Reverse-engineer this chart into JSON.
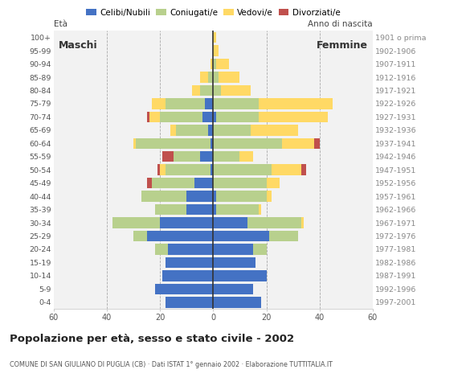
{
  "age_groups": [
    "0-4",
    "5-9",
    "10-14",
    "15-19",
    "20-24",
    "25-29",
    "30-34",
    "35-39",
    "40-44",
    "45-49",
    "50-54",
    "55-59",
    "60-64",
    "65-69",
    "70-74",
    "75-79",
    "80-84",
    "85-89",
    "90-94",
    "95-99",
    "100+"
  ],
  "birth_years": [
    "1997-2001",
    "1992-1996",
    "1987-1991",
    "1982-1986",
    "1977-1981",
    "1972-1976",
    "1967-1971",
    "1962-1966",
    "1957-1961",
    "1952-1956",
    "1947-1951",
    "1942-1946",
    "1937-1941",
    "1932-1936",
    "1927-1931",
    "1922-1926",
    "1917-1921",
    "1912-1916",
    "1907-1911",
    "1902-1906",
    "1901 o prima"
  ],
  "males": {
    "celibi": [
      18,
      22,
      19,
      18,
      17,
      25,
      20,
      10,
      10,
      7,
      1,
      5,
      1,
      2,
      4,
      3,
      0,
      0,
      0,
      0,
      0
    ],
    "coniugati": [
      0,
      0,
      0,
      0,
      5,
      5,
      18,
      12,
      17,
      16,
      17,
      10,
      28,
      12,
      16,
      15,
      5,
      2,
      0,
      0,
      0
    ],
    "vedovi": [
      0,
      0,
      0,
      0,
      0,
      0,
      0,
      0,
      0,
      0,
      2,
      0,
      1,
      2,
      4,
      5,
      3,
      3,
      1,
      0,
      0
    ],
    "divorziati": [
      0,
      0,
      0,
      0,
      0,
      0,
      0,
      0,
      0,
      2,
      1,
      4,
      0,
      0,
      1,
      0,
      0,
      0,
      0,
      0,
      0
    ]
  },
  "females": {
    "nubili": [
      18,
      15,
      20,
      16,
      15,
      21,
      13,
      1,
      1,
      0,
      0,
      0,
      0,
      0,
      1,
      0,
      0,
      0,
      0,
      0,
      0
    ],
    "coniugate": [
      0,
      0,
      0,
      0,
      5,
      11,
      20,
      16,
      19,
      20,
      22,
      10,
      26,
      14,
      16,
      17,
      3,
      2,
      1,
      0,
      0
    ],
    "vedove": [
      0,
      0,
      0,
      0,
      0,
      0,
      1,
      1,
      2,
      5,
      11,
      5,
      12,
      18,
      26,
      28,
      11,
      8,
      5,
      2,
      1
    ],
    "divorziate": [
      0,
      0,
      0,
      0,
      0,
      0,
      0,
      0,
      0,
      0,
      2,
      0,
      2,
      0,
      0,
      0,
      0,
      0,
      0,
      0,
      0
    ]
  },
  "colors": {
    "celibi": "#4472c4",
    "coniugati": "#b8d08d",
    "vedovi": "#ffd965",
    "divorziati": "#c0504d"
  },
  "title": "Popolazione per età, sesso e stato civile - 2002",
  "subtitle": "COMUNE DI SAN GIULIANO DI PUGLIA (CB) · Dati ISTAT 1° gennaio 2002 · Elaborazione TUTTITALIA.IT",
  "label_maschi": "Maschi",
  "label_femmine": "Femmine",
  "ylabel_left": "Età",
  "ylabel_right": "Anno di nascita",
  "xlim": 60,
  "legend_labels": [
    "Celibi/Nubili",
    "Coniugati/e",
    "Vedovi/e",
    "Divorziati/e"
  ],
  "bg_color": "#ffffff",
  "plot_bg": "#f2f2f2"
}
